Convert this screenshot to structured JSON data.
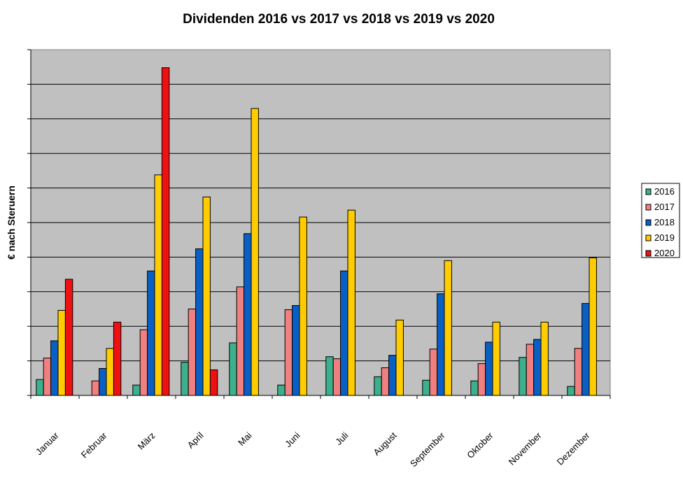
{
  "chart_data": {
    "type": "bar",
    "title": "Dividenden 2016 vs 2017 vs 2018 vs 2019 vs 2020",
    "xlabel": "",
    "ylabel": "€ nach Steruern",
    "ylim": [
      0,
      100
    ],
    "grid": true,
    "legend": "right",
    "categories": [
      "Januar",
      "Februar",
      "März",
      "April",
      "Mai",
      "Juni",
      "Juli",
      "August",
      "September",
      "Oktober",
      "November",
      "Dezember"
    ],
    "series": [
      {
        "name": "2016",
        "color": "#3cb08c",
        "values": [
          4.6,
          0,
          3.0,
          9.6,
          15.2,
          3.0,
          11.2,
          5.4,
          4.4,
          4.2,
          11.0,
          2.6
        ]
      },
      {
        "name": "2017",
        "color": "#f08080",
        "values": [
          10.8,
          4.2,
          19.0,
          25.0,
          31.4,
          24.8,
          10.6,
          8.0,
          13.4,
          9.2,
          14.8,
          13.6
        ]
      },
      {
        "name": "2018",
        "color": "#0a5fc4",
        "values": [
          15.8,
          7.8,
          36.0,
          42.4,
          46.8,
          26.0,
          36.0,
          11.6,
          29.4,
          15.4,
          16.2,
          26.6
        ]
      },
      {
        "name": "2019",
        "color": "#ffcc00",
        "values": [
          24.6,
          13.6,
          63.8,
          57.4,
          83.0,
          51.6,
          53.6,
          21.8,
          39.0,
          21.2,
          21.2,
          39.8
        ]
      },
      {
        "name": "2020",
        "color": "#ee1111",
        "values": [
          33.6,
          21.2,
          94.8,
          7.4,
          null,
          null,
          null,
          null,
          null,
          null,
          null,
          null
        ]
      }
    ]
  }
}
